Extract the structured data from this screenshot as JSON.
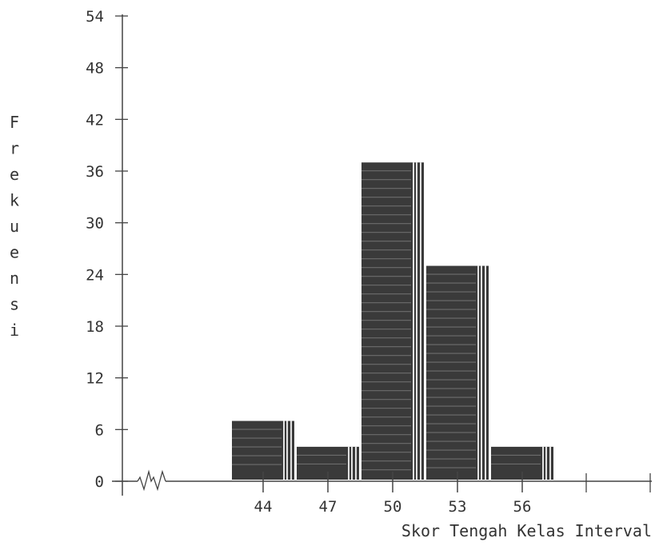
{
  "chart_data": {
    "type": "bar",
    "title": "",
    "xlabel": "Skor Tengah Kelas Interval",
    "ylabel": "Frekuensi",
    "categories": [
      "44",
      "47",
      "50",
      "53",
      "56"
    ],
    "values": [
      7,
      4,
      37,
      25,
      4
    ],
    "yticks": [
      "0",
      "6",
      "12",
      "18",
      "24",
      "30",
      "36",
      "42",
      "48",
      "54"
    ],
    "ylim": [
      0,
      54
    ],
    "axis_break": true,
    "grid": false,
    "bar_color": "#3a3a3a",
    "axis_color": "#444444"
  }
}
